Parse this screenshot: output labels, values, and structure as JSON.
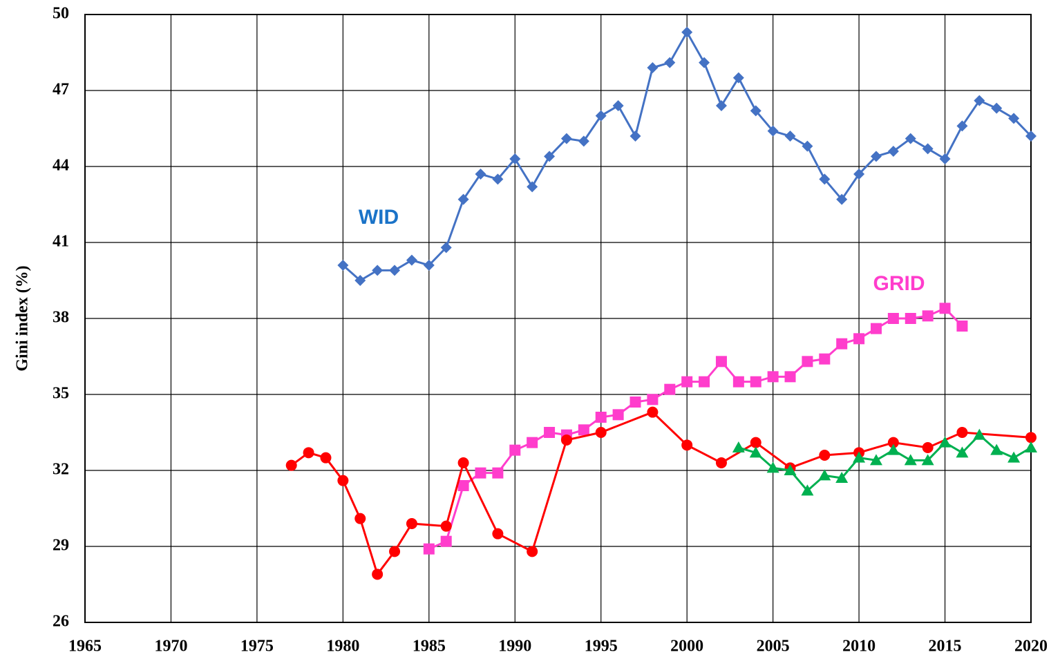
{
  "chart_data": {
    "type": "line",
    "ylabel": "Gini index (%)",
    "xlim": [
      1965,
      2020
    ],
    "xticks": [
      1965,
      1970,
      1975,
      1980,
      1985,
      1990,
      1995,
      2000,
      2005,
      2010,
      2015,
      2020
    ],
    "ylim": [
      26,
      50
    ],
    "yticks": [
      26,
      29,
      32,
      35,
      38,
      41,
      44,
      47,
      50
    ],
    "grid": true,
    "series": [
      {
        "name": "WID",
        "color": "#4472c4",
        "label_color": "#1a73c8",
        "marker": "diamond",
        "x": [
          1980,
          1981,
          1982,
          1983,
          1984,
          1985,
          1986,
          1987,
          1988,
          1989,
          1990,
          1991,
          1992,
          1993,
          1994,
          1995,
          1996,
          1997,
          1998,
          1999,
          2000,
          2001,
          2002,
          2003,
          2004,
          2005,
          2006,
          2007,
          2008,
          2009,
          2010,
          2011,
          2012,
          2013,
          2014,
          2015,
          2016,
          2017,
          2018,
          2019,
          2020
        ],
        "values": [
          40.1,
          39.5,
          39.9,
          39.9,
          40.3,
          40.1,
          40.8,
          42.7,
          43.7,
          43.5,
          44.3,
          43.2,
          44.4,
          45.1,
          45.0,
          46.0,
          46.4,
          45.2,
          47.9,
          48.1,
          49.3,
          48.1,
          46.4,
          47.5,
          46.2,
          45.4,
          45.2,
          44.8,
          43.5,
          42.7,
          43.7,
          44.4,
          44.6,
          45.1,
          44.7,
          44.3,
          45.6,
          46.6,
          46.3,
          45.9,
          45.2
        ]
      },
      {
        "name": "GRID",
        "color": "#ff3dcc",
        "label_color": "#ff3dcc",
        "marker": "square",
        "x": [
          1985,
          1986,
          1987,
          1988,
          1989,
          1990,
          1991,
          1992,
          1993,
          1994,
          1995,
          1996,
          1997,
          1998,
          1999,
          2000,
          2001,
          2002,
          2003,
          2004,
          2005,
          2006,
          2007,
          2008,
          2009,
          2010,
          2011,
          2012,
          2013,
          2014,
          2015,
          2016
        ],
        "values": [
          28.9,
          29.2,
          31.4,
          31.9,
          31.9,
          32.8,
          33.1,
          33.5,
          33.4,
          33.6,
          34.1,
          34.2,
          34.7,
          34.8,
          35.2,
          35.5,
          35.5,
          36.3,
          35.5,
          35.5,
          35.7,
          35.7,
          36.3,
          36.4,
          37.0,
          37.2,
          37.6,
          38.0,
          38.0,
          38.1,
          38.4,
          37.7
        ]
      },
      {
        "color": "#ff0000",
        "marker": "circle",
        "x": [
          1977,
          1978,
          1979,
          1980,
          1981,
          1982,
          1983,
          1984,
          1986,
          1987,
          1989,
          1991,
          1993,
          1995,
          1998,
          2000,
          2002,
          2004,
          2006,
          2008,
          2010,
          2012,
          2014,
          2016,
          2020
        ],
        "values": [
          32.2,
          32.7,
          32.5,
          31.6,
          30.1,
          27.9,
          28.8,
          29.9,
          29.8,
          32.3,
          29.5,
          28.8,
          33.2,
          33.5,
          34.3,
          33.0,
          32.3,
          33.1,
          32.1,
          32.6,
          32.7,
          33.1,
          32.9,
          33.5,
          33.3
        ]
      },
      {
        "color": "#00b050",
        "marker": "triangle",
        "x": [
          2003,
          2004,
          2005,
          2006,
          2007,
          2008,
          2009,
          2010,
          2011,
          2012,
          2013,
          2014,
          2015,
          2016,
          2017,
          2018,
          2019,
          2020
        ],
        "values": [
          32.9,
          32.7,
          32.1,
          32.0,
          31.2,
          31.8,
          31.7,
          32.5,
          32.4,
          32.8,
          32.4,
          32.4,
          33.1,
          32.7,
          33.4,
          32.8,
          32.5,
          32.9
        ]
      }
    ]
  }
}
